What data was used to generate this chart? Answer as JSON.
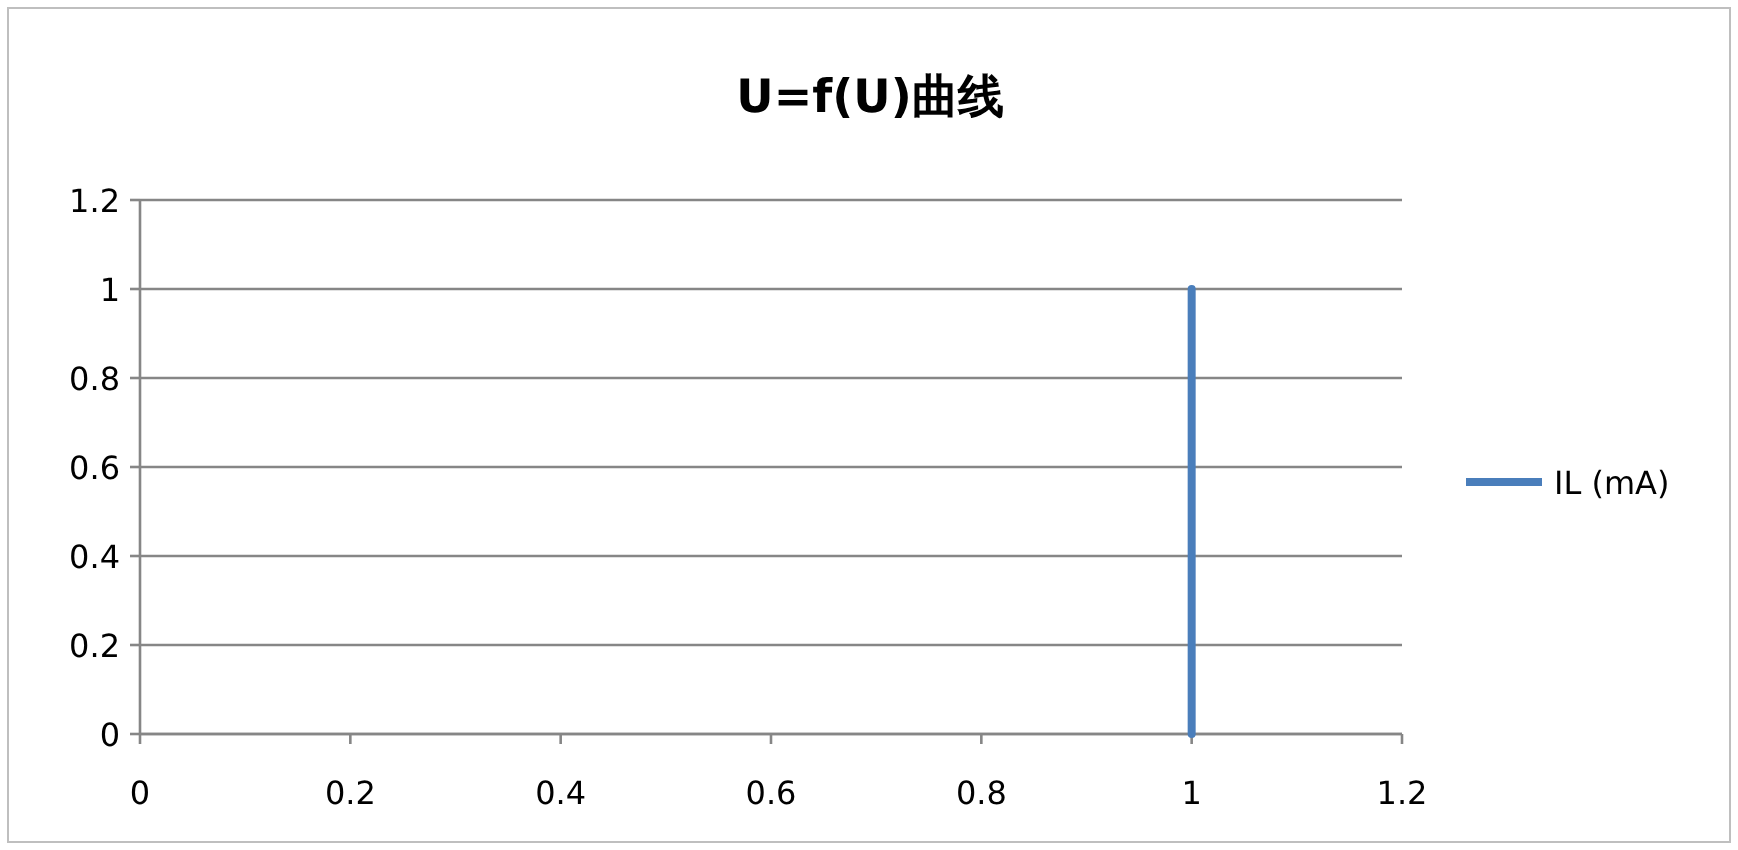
{
  "chart_data": {
    "type": "line",
    "title": "U=f(U)曲线",
    "x": [
      1,
      1
    ],
    "series": [
      {
        "name": "IL (mA)",
        "color": "#4a7ebb",
        "values": [
          0,
          1
        ]
      }
    ],
    "xlim": [
      0,
      1.2
    ],
    "ylim": [
      0,
      1.2
    ],
    "xticks": [
      0,
      0.2,
      0.4,
      0.6,
      0.8,
      1,
      1.2
    ],
    "yticks": [
      0,
      0.2,
      0.4,
      0.6,
      0.8,
      1,
      1.2
    ],
    "grid": "y",
    "legend": "right"
  }
}
